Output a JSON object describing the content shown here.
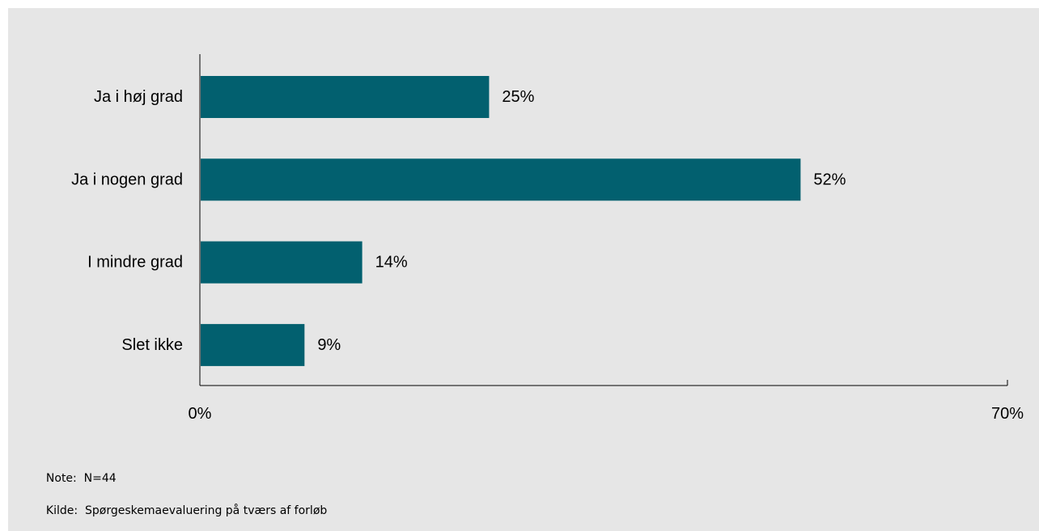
{
  "chart_data": {
    "type": "bar",
    "orientation": "horizontal",
    "categories": [
      "Ja i høj grad",
      "Ja i nogen grad",
      "I mindre grad",
      "Slet ikke"
    ],
    "values": [
      25,
      52,
      14,
      9
    ],
    "value_labels": [
      "25%",
      "52%",
      "14%",
      "9%"
    ],
    "xlim": [
      0,
      70
    ],
    "x_ticks": [
      "0%",
      "70%"
    ],
    "bar_color": "#02606f",
    "background_color": "#e6e6e6",
    "grid": false,
    "title": "",
    "xlabel": "",
    "ylabel": ""
  },
  "notes": {
    "note_key": "Note:",
    "note_value": "N=44",
    "source_key": "Kilde:",
    "source_value": "Spørgeskemaevaluering på tværs af forløb"
  }
}
